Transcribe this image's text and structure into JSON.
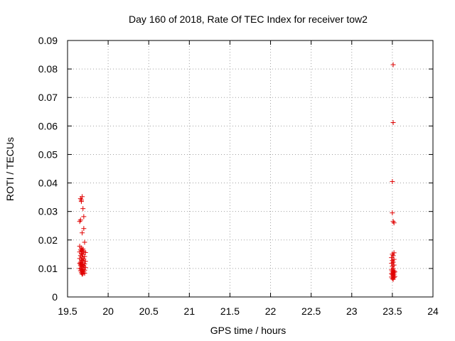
{
  "chart_data": {
    "type": "scatter",
    "title": "Day 160 of 2018, Rate Of TEC Index for receiver tow2",
    "xlabel": "GPS time / hours",
    "ylabel": "ROTI / TECUs",
    "xlim": [
      19.5,
      24
    ],
    "ylim": [
      0,
      0.09
    ],
    "xticks": [
      "19.5",
      "20",
      "20.5",
      "21",
      "21.5",
      "22",
      "22.5",
      "23",
      "23.5",
      "24"
    ],
    "yticks": [
      "0",
      "0.01",
      "0.02",
      "0.03",
      "0.04",
      "0.05",
      "0.06",
      "0.07",
      "0.08",
      "0.09"
    ],
    "grid": true,
    "marker": "+",
    "color": "#e00000",
    "series": [
      {
        "name": "ROTI",
        "points": [
          [
            19.66,
            0.0345
          ],
          [
            19.67,
            0.0335
          ],
          [
            19.68,
            0.0352
          ],
          [
            19.67,
            0.034
          ],
          [
            19.69,
            0.031
          ],
          [
            19.66,
            0.027
          ],
          [
            19.65,
            0.0265
          ],
          [
            19.7,
            0.0282
          ],
          [
            19.7,
            0.024
          ],
          [
            19.68,
            0.0225
          ],
          [
            19.71,
            0.0192
          ],
          [
            19.65,
            0.0178
          ],
          [
            19.67,
            0.0172
          ],
          [
            19.69,
            0.0168
          ],
          [
            19.66,
            0.0165
          ],
          [
            19.68,
            0.0162
          ],
          [
            19.7,
            0.016
          ],
          [
            19.65,
            0.0158
          ],
          [
            19.72,
            0.0156
          ],
          [
            19.67,
            0.0152
          ],
          [
            19.69,
            0.015
          ],
          [
            19.66,
            0.0145
          ],
          [
            19.71,
            0.0142
          ],
          [
            19.68,
            0.014
          ],
          [
            19.65,
            0.0135
          ],
          [
            19.7,
            0.0133
          ],
          [
            19.67,
            0.013
          ],
          [
            19.69,
            0.0128
          ],
          [
            19.72,
            0.0125
          ],
          [
            19.66,
            0.0122
          ],
          [
            19.68,
            0.012
          ],
          [
            19.65,
            0.0118
          ],
          [
            19.71,
            0.0116
          ],
          [
            19.67,
            0.0114
          ],
          [
            19.69,
            0.0112
          ],
          [
            19.66,
            0.011
          ],
          [
            19.7,
            0.0108
          ],
          [
            19.68,
            0.0105
          ],
          [
            19.72,
            0.0103
          ],
          [
            19.65,
            0.01
          ],
          [
            19.67,
            0.0098
          ],
          [
            19.69,
            0.0096
          ],
          [
            19.71,
            0.0094
          ],
          [
            19.66,
            0.0092
          ],
          [
            19.68,
            0.009
          ],
          [
            19.7,
            0.0088
          ],
          [
            19.67,
            0.0085
          ],
          [
            19.69,
            0.0082
          ],
          [
            19.68,
            0.008
          ],
          [
            19.71,
            0.0083
          ],
          [
            19.66,
            0.0115
          ],
          [
            23.51,
            0.0815
          ],
          [
            23.51,
            0.0612
          ],
          [
            23.5,
            0.0405
          ],
          [
            23.5,
            0.0295
          ],
          [
            23.51,
            0.0265
          ],
          [
            23.52,
            0.026
          ],
          [
            23.52,
            0.0155
          ],
          [
            23.5,
            0.015
          ],
          [
            23.51,
            0.0145
          ],
          [
            23.49,
            0.0138
          ],
          [
            23.52,
            0.0132
          ],
          [
            23.5,
            0.0128
          ],
          [
            23.51,
            0.0122
          ],
          [
            23.49,
            0.0118
          ],
          [
            23.52,
            0.0112
          ],
          [
            23.5,
            0.0108
          ],
          [
            23.51,
            0.01
          ],
          [
            23.49,
            0.0095
          ],
          [
            23.52,
            0.0092
          ],
          [
            23.5,
            0.009
          ],
          [
            23.53,
            0.0088
          ],
          [
            23.51,
            0.0085
          ],
          [
            23.49,
            0.0082
          ],
          [
            23.52,
            0.008
          ],
          [
            23.5,
            0.0078
          ],
          [
            23.51,
            0.0075
          ],
          [
            23.53,
            0.0072
          ],
          [
            23.49,
            0.007
          ],
          [
            23.52,
            0.0068
          ],
          [
            23.5,
            0.0065
          ],
          [
            23.51,
            0.0062
          ],
          [
            23.52,
            0.0087
          ],
          [
            23.5,
            0.0083
          ]
        ]
      }
    ]
  }
}
